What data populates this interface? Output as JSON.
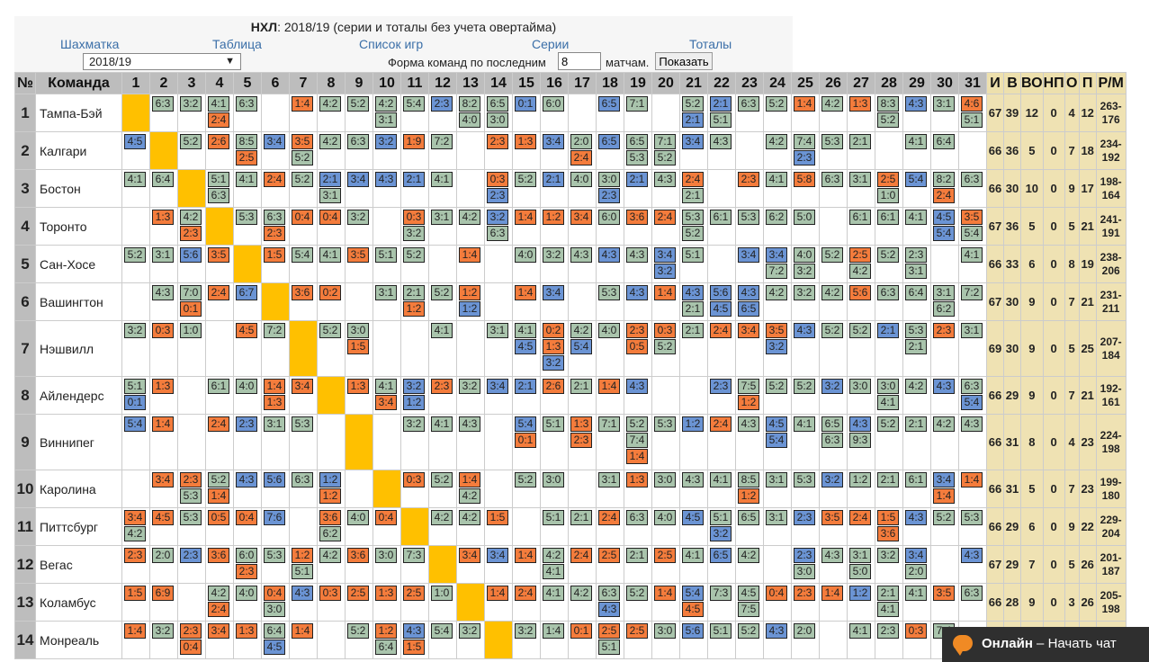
{
  "title": {
    "league": "НХЛ",
    "text": ": 2018/19 (серии и тоталы без учета овертайма)"
  },
  "nav": [
    "Шахматка",
    "Таблица",
    "Список игр",
    "Серии",
    "Тоталы"
  ],
  "season_select": "2018/19",
  "form": {
    "label": "Форма команд по последним",
    "value": "8",
    "unit": "матчам.",
    "button": "Показать"
  },
  "columns": [
    "№",
    "Команда",
    "1",
    "2",
    "3",
    "4",
    "5",
    "6",
    "7",
    "8",
    "9",
    "10",
    "11",
    "12",
    "13",
    "14",
    "15",
    "16",
    "17",
    "18",
    "19",
    "20",
    "21",
    "22",
    "23",
    "24",
    "25",
    "26",
    "27",
    "28",
    "29",
    "30",
    "31",
    "И",
    "В",
    "ВО",
    "НП",
    "О",
    "П",
    "Р/М"
  ],
  "rows": [
    {
      "n": "1",
      "team": "Тампа-Бэй",
      "cells": [
        "_",
        "g6:3",
        "g3:2",
        "g4:1|o2:4",
        "g6:3",
        "",
        "o1:4",
        "g4:2",
        "g5:2",
        "g4:2|g3:1",
        "g5:4",
        "b2:3",
        "g8:2|g4:0",
        "g6:5|g3:0",
        "b0:1",
        "g6:0",
        "",
        "b6:5",
        "g7:1",
        "",
        "g5:2|b2:1",
        "b2:1|g5:1",
        "g6:3",
        "g5:2",
        "o1:4",
        "g4:2",
        "o1:3",
        "g8:3|g5:2",
        "b4:3",
        "g3:1",
        "o4:6|g5:1"
      ],
      "st": [
        "67",
        "39",
        "12",
        "0",
        "4",
        "12",
        "263-176"
      ]
    },
    {
      "n": "2",
      "team": "Калгари",
      "cells": [
        "b4:5",
        "_",
        "g5:2",
        "o2:6",
        "g8:5|o2:5",
        "b3:4",
        "o3:5|g5:2",
        "g4:2",
        "g6:3",
        "b3:2",
        "o1:9",
        "g7:2",
        "",
        "o2:3",
        "o1:3",
        "b3:4",
        "g2:0|o2:4",
        "b6:5",
        "g6:5|g5:3",
        "g7:1|g5:2",
        "b3:4",
        "g4:3",
        "",
        "g4:2",
        "g7:4|b2:3",
        "g5:3",
        "g2:1",
        "",
        "g4:1",
        "g6:4",
        ""
      ],
      "st": [
        "66",
        "36",
        "5",
        "0",
        "7",
        "18",
        "234-192"
      ]
    },
    {
      "n": "3",
      "team": "Бостон",
      "cells": [
        "g4:1",
        "g6:4",
        "_",
        "g5:1|g6:3",
        "g4:1",
        "o2:4",
        "g5:2",
        "b2:1|g3:1",
        "b3:4",
        "b4:3",
        "b2:1",
        "g4:1",
        "",
        "o0:3|b2:3",
        "g5:2",
        "b2:1",
        "g4:0",
        "g3:0|b2:3",
        "b2:1",
        "g4:3",
        "o2:4|g2:1",
        "",
        "o2:3",
        "g4:1",
        "o5:8",
        "g6:3",
        "g3:1",
        "o2:5|g1:0",
        "b5:4",
        "g8:2|o2:4",
        "g6:3"
      ],
      "st": [
        "66",
        "30",
        "10",
        "0",
        "9",
        "17",
        "198-164"
      ]
    },
    {
      "n": "4",
      "team": "Торонто",
      "cells": [
        "",
        "o1:3",
        "g4:2|o2:3",
        "_",
        "g5:3",
        "g6:3|o2:3",
        "o0:4",
        "o0:4",
        "g3:2",
        "",
        "o0:3|g3:2",
        "g3:1",
        "g4:2",
        "b3:2|g6:3",
        "o1:4",
        "o1:2",
        "o3:4",
        "g6:0",
        "o3:6",
        "o2:4",
        "g5:3|g5:2",
        "g6:1",
        "g5:3",
        "g6:2",
        "g5:0",
        "",
        "g6:1",
        "g6:1",
        "g4:1",
        "b4:5|b5:4",
        "o3:5|g5:4"
      ],
      "st": [
        "67",
        "36",
        "5",
        "0",
        "5",
        "21",
        "241-191"
      ]
    },
    {
      "n": "5",
      "team": "Сан-Хосе",
      "cells": [
        "g5:2",
        "g3:1",
        "b5:6",
        "o3:5",
        "_",
        "o1:5",
        "g5:4",
        "g4:1",
        "o3:5",
        "g5:1",
        "g5:2",
        "",
        "o1:4",
        "",
        "g4:0",
        "g3:2",
        "g4:3",
        "b4:3",
        "g4:3",
        "b3:4|b3:2",
        "g5:1",
        "",
        "b3:4",
        "b3:4|g7:2",
        "g4:0|g3:2",
        "g5:2",
        "o2:5|g4:2",
        "g5:2",
        "g2:3|g3:1",
        "",
        "g4:1"
      ],
      "st": [
        "66",
        "33",
        "6",
        "0",
        "8",
        "19",
        "238-206"
      ]
    },
    {
      "n": "6",
      "team": "Вашингтон",
      "cells": [
        "",
        "g4:3",
        "g7:0|o0:1",
        "o2:4",
        "b6:7",
        "_",
        "o3:6",
        "o0:2",
        "",
        "g3:1",
        "g2:1|o1:2",
        "g5:2",
        "o1:2|b1:2",
        "",
        "o1:4",
        "b3:4",
        "",
        "g5:3",
        "b4:3",
        "o1:4",
        "b4:3|g2:1",
        "b5:6|b4:5",
        "b4:3|b6:5",
        "g4:2",
        "g3:2",
        "g4:2",
        "o5:6",
        "g6:3",
        "g6:4",
        "g3:1|g6:2",
        "g7:2"
      ],
      "st": [
        "67",
        "30",
        "9",
        "0",
        "7",
        "21",
        "231-211"
      ]
    },
    {
      "n": "7",
      "team": "Нэшвилл",
      "cells": [
        "g3:2",
        "o0:3",
        "g1:0",
        "",
        "o4:5",
        "g7:2",
        "_",
        "g5:2",
        "g3:0|o1:5",
        "",
        "",
        "g4:1",
        "",
        "g3:1",
        "g4:1|b4:5",
        "o0:2|o1:3|b3:2",
        "g4:2|b5:4",
        "g4:0",
        "o2:3|o0:5",
        "o0:3|g5:2",
        "g2:1",
        "o2:4",
        "o3:4",
        "o3:5|b3:2",
        "b4:3",
        "g5:2",
        "g5:2",
        "b2:1",
        "g5:3|g2:1",
        "o2:3",
        "g3:1"
      ],
      "st": [
        "69",
        "30",
        "9",
        "0",
        "5",
        "25",
        "207-184"
      ]
    },
    {
      "n": "8",
      "team": "Айлендерс",
      "cells": [
        "g5:1|b0:1",
        "o1:3",
        "",
        "g6:1",
        "g4:0",
        "o1:4|o1:3",
        "o3:4",
        "_",
        "o1:3",
        "g4:1|o3:4",
        "b3:2|b1:2",
        "o2:3",
        "g3:2",
        "b3:4",
        "b2:1",
        "o2:6",
        "g2:1",
        "o1:4",
        "b4:3",
        "",
        "",
        "b2:3",
        "g7:5|o1:2",
        "g5:2",
        "g5:2",
        "b3:2",
        "g3:0",
        "g3:0|g4:1",
        "g4:2",
        "b4:3",
        "g6:3|b5:4"
      ],
      "st": [
        "66",
        "29",
        "9",
        "0",
        "7",
        "21",
        "192-161"
      ]
    },
    {
      "n": "9",
      "team": "Виннипег",
      "cells": [
        "b5:4",
        "o1:4",
        "",
        "o2:4",
        "b2:3",
        "g3:1",
        "g5:3",
        "",
        "_",
        "",
        "g3:2",
        "g4:1",
        "g4:3",
        "",
        "b5:4|o0:1",
        "g5:1",
        "o1:3|o2:3",
        "g7:1",
        "g5:2|g7:4|o1:4",
        "g5:3",
        "b1:2",
        "o2:4",
        "g4:3",
        "b4:5|b5:4",
        "g4:1",
        "g6:5|g6:3",
        "b4:3|g9:3",
        "g5:2",
        "g2:1",
        "g4:2",
        "g4:3"
      ],
      "st": [
        "66",
        "31",
        "8",
        "0",
        "4",
        "23",
        "224-198"
      ]
    },
    {
      "n": "10",
      "team": "Каролина",
      "cells": [
        "",
        "o3:4",
        "o2:3|g5:3",
        "g5:2|o1:4",
        "b4:3",
        "b5:6",
        "g6:3",
        "b1:2|o1:2",
        "",
        "_",
        "o0:3",
        "g5:2",
        "o1:4|g4:2",
        "",
        "g5:2",
        "g3:0",
        "",
        "g3:1",
        "o1:3",
        "g3:0",
        "g4:3",
        "g4:1",
        "g8:5|o1:2",
        "g3:1",
        "g5:3",
        "b3:2",
        "g1:2",
        "g2:1",
        "g6:1",
        "b3:4|o1:4",
        "o1:4"
      ],
      "st": [
        "66",
        "31",
        "5",
        "0",
        "7",
        "23",
        "199-180"
      ]
    },
    {
      "n": "11",
      "team": "Питтсбург",
      "cells": [
        "o3:4|g4:2",
        "o4:5",
        "g5:3",
        "o0:5",
        "o0:4",
        "b7:6",
        "",
        "o3:6|g6:2",
        "g4:0",
        "o0:4",
        "_",
        "g4:2",
        "g4:2",
        "o1:5",
        "",
        "g5:1",
        "g2:1",
        "o2:4",
        "g6:3",
        "g4:0",
        "b4:5",
        "g5:1|b3:2",
        "g6:5",
        "g3:1",
        "b2:3",
        "o3:5",
        "o2:4",
        "o1:5|o3:6",
        "b4:3",
        "g5:2",
        "g5:3"
      ],
      "st": [
        "66",
        "29",
        "6",
        "0",
        "9",
        "22",
        "229-204"
      ]
    },
    {
      "n": "12",
      "team": "Вегас",
      "cells": [
        "o2:3",
        "g2:0",
        "b2:3",
        "o3:6",
        "g6:0|o2:3",
        "g5:3",
        "o1:2|g5:1",
        "g4:2",
        "o3:6",
        "g3:0",
        "g7:3",
        "_",
        "o3:4",
        "b3:4",
        "o1:4",
        "g4:2|g4:1",
        "o2:4",
        "o2:5",
        "g2:1",
        "o2:5",
        "g4:1",
        "b6:5",
        "g4:2",
        "",
        "b2:3|g3:0",
        "g4:3",
        "g3:1|g5:0",
        "g3:2",
        "b3:4|g2:0",
        "",
        "b4:3"
      ],
      "st": [
        "67",
        "29",
        "7",
        "0",
        "5",
        "26",
        "201-187"
      ]
    },
    {
      "n": "13",
      "team": "Коламбус",
      "cells": [
        "o1:5",
        "o6:9",
        "",
        "g4:2|o2:4",
        "g4:0",
        "o0:4|g3:0",
        "b4:3",
        "o0:3",
        "o2:5",
        "o1:3",
        "o2:5",
        "g1:0",
        "_",
        "o1:4",
        "o2:4",
        "g4:1",
        "g4:2",
        "g6:3|b4:3",
        "g5:2",
        "o1:4",
        "b5:4|o4:5",
        "g7:3",
        "g4:5|g7:5",
        "o0:4",
        "o2:3",
        "o1:4",
        "b1:2",
        "g2:1|g4:1",
        "g4:1",
        "o3:5",
        "g6:3"
      ],
      "st": [
        "66",
        "28",
        "9",
        "0",
        "3",
        "26",
        "205-198"
      ]
    },
    {
      "n": "14",
      "team": "Монреаль",
      "cells": [
        "o1:4",
        "g3:2",
        "o2:3|o0:4",
        "o3:4",
        "o1:3",
        "g6:4|b4:5",
        "o1:4",
        "",
        "g5:2",
        "o1:2|g6:4",
        "b4:3|o1:5",
        "g5:4",
        "g3:2",
        "_",
        "g3:2",
        "g1:4",
        "o0:1",
        "o2:5|g5:1",
        "o2:5",
        "g3:0",
        "b5:6",
        "g5:1",
        "g5:2",
        "b4:3",
        "g2:0",
        "",
        "g4:1",
        "g2:3",
        "o0:3",
        "g7:4",
        ""
      ],
      "st": [
        "",
        "",
        "",
        "",
        "",
        "",
        ""
      ]
    }
  ],
  "chat": {
    "status": "Онлайн",
    "action": "Начать чат"
  }
}
